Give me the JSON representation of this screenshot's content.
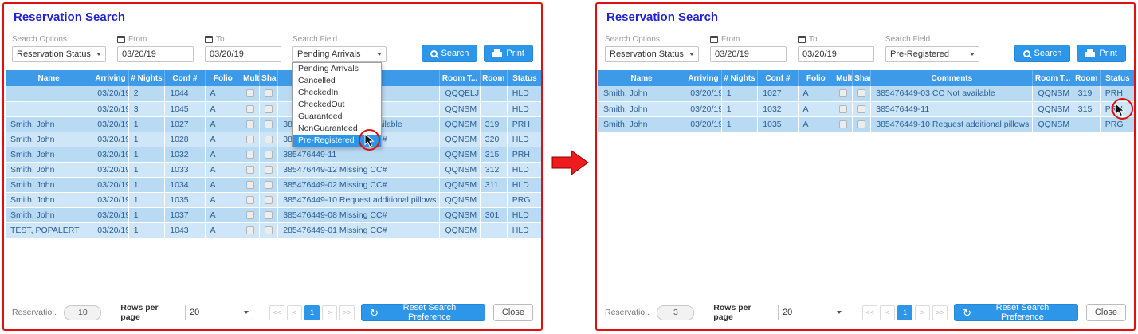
{
  "colors": {
    "frame": "#e01010",
    "title": "#2323cc",
    "accent": "#2e96e8",
    "header_bg": "#3d9ae8",
    "row_dark": "#b9daf3",
    "row_light": "#cfe6f8"
  },
  "panels": [
    {
      "title": "Reservation Search",
      "search": {
        "options_label": "Search Options",
        "options_value": "Reservation Status",
        "from_label": "From",
        "from_value": "03/20/19",
        "to_label": "To",
        "to_value": "03/20/19",
        "field_label": "Search Field",
        "field_value": "Pending Arrivals",
        "search_button": "Search",
        "print_button": "Print"
      },
      "dropdown": {
        "options": [
          "Pending Arrivals",
          "Cancelled",
          "CheckedIn",
          "CheckedOut",
          "Guaranteed",
          "NonGuaranteed",
          "Pre-Registered"
        ],
        "selected_index": 6
      },
      "table": {
        "columns": [
          "Name",
          "Arriving",
          "# Nights",
          "Conf #",
          "Folio",
          "Multi",
          "Share",
          "Comments",
          "Room T...",
          "Room",
          "Status"
        ],
        "rows": [
          {
            "name": "",
            "arriving": "03/20/19",
            "nights": "2",
            "conf": "1044",
            "folio": "A",
            "comments": "",
            "room_type": "QQQELJ",
            "room": "",
            "status": "HLD"
          },
          {
            "name": "",
            "arriving": "03/20/19",
            "nights": "3",
            "conf": "1045",
            "folio": "A",
            "comments": "",
            "room_type": "QQNSM",
            "room": "",
            "status": "HLD"
          },
          {
            "name": "Smith, John",
            "arriving": "03/20/19",
            "nights": "1",
            "conf": "1027",
            "folio": "A",
            "comments": "385476449-03 CC Not available",
            "room_type": "QQNSM",
            "room": "319",
            "status": "PRH"
          },
          {
            "name": "Smith, John",
            "arriving": "03/20/19",
            "nights": "1",
            "conf": "1028",
            "folio": "A",
            "comments": "385476449-04 Missing CC#",
            "room_type": "QQNSM",
            "room": "320",
            "status": "HLD"
          },
          {
            "name": "Smith, John",
            "arriving": "03/20/19",
            "nights": "1",
            "conf": "1032",
            "folio": "A",
            "comments": "385476449-11",
            "room_type": "QQNSM",
            "room": "315",
            "status": "PRH"
          },
          {
            "name": "Smith, John",
            "arriving": "03/20/19",
            "nights": "1",
            "conf": "1033",
            "folio": "A",
            "comments": "385476449-12 Missing CC#",
            "room_type": "QQNSM",
            "room": "312",
            "status": "HLD"
          },
          {
            "name": "Smith, John",
            "arriving": "03/20/19",
            "nights": "1",
            "conf": "1034",
            "folio": "A",
            "comments": "385476449-02 Missing CC#",
            "room_type": "QQNSM",
            "room": "311",
            "status": "HLD"
          },
          {
            "name": "Smith, John",
            "arriving": "03/20/19",
            "nights": "1",
            "conf": "1035",
            "folio": "A",
            "comments": "385476449-10 Request additional pillows",
            "room_type": "QQNSM",
            "room": "",
            "status": "PRG"
          },
          {
            "name": "Smith, John",
            "arriving": "03/20/19",
            "nights": "1",
            "conf": "1037",
            "folio": "A",
            "comments": "385476449-08 Missing CC#",
            "room_type": "QQNSM",
            "room": "301",
            "status": "HLD"
          },
          {
            "name": "TEST, POPALERT",
            "arriving": "03/20/19",
            "nights": "1",
            "conf": "1043",
            "folio": "A",
            "comments": "285476449-01 Missing CC#",
            "room_type": "QQNSM",
            "room": "",
            "status": "HLD"
          }
        ]
      },
      "footer": {
        "count_label": "Reservatio...",
        "count": "10",
        "rows_per_page_label": "Rows per page",
        "rows_per_page_value": "20",
        "pagination": [
          "<<",
          "<",
          "1",
          ">",
          ">>"
        ],
        "reset_button": "Reset Search Preference",
        "close_button": "Close"
      }
    },
    {
      "title": "Reservation Search",
      "search": {
        "options_label": "Search Options",
        "options_value": "Reservation Status",
        "from_label": "From",
        "from_value": "03/20/19",
        "to_label": "To",
        "to_value": "03/20/19",
        "field_label": "Search Field",
        "field_value": "Pre-Registered",
        "search_button": "Search",
        "print_button": "Print"
      },
      "table": {
        "columns": [
          "Name",
          "Arriving",
          "# Nights",
          "Conf #",
          "Folio",
          "Multi",
          "Share",
          "Comments",
          "Room T...",
          "Room",
          "Status"
        ],
        "rows": [
          {
            "name": "Smith, John",
            "arriving": "03/20/19",
            "nights": "1",
            "conf": "1027",
            "folio": "A",
            "comments": "385476449-03 CC Not available",
            "room_type": "QQNSM",
            "room": "319",
            "status": "PRH"
          },
          {
            "name": "Smith, John",
            "arriving": "03/20/19",
            "nights": "1",
            "conf": "1032",
            "folio": "A",
            "comments": "385476449-11",
            "room_type": "QQNSM",
            "room": "315",
            "status": "PRH"
          },
          {
            "name": "Smith, John",
            "arriving": "03/20/19",
            "nights": "1",
            "conf": "1035",
            "folio": "A",
            "comments": "385476449-10 Request additional pillows",
            "room_type": "QQNSM",
            "room": "",
            "status": "PRG"
          }
        ]
      },
      "footer": {
        "count_label": "Reservatio...",
        "count": "3",
        "rows_per_page_label": "Rows per page",
        "rows_per_page_value": "20",
        "pagination": [
          "<<",
          "<",
          "1",
          ">",
          ">>"
        ],
        "reset_button": "Reset Search Preference",
        "close_button": "Close"
      }
    }
  ]
}
